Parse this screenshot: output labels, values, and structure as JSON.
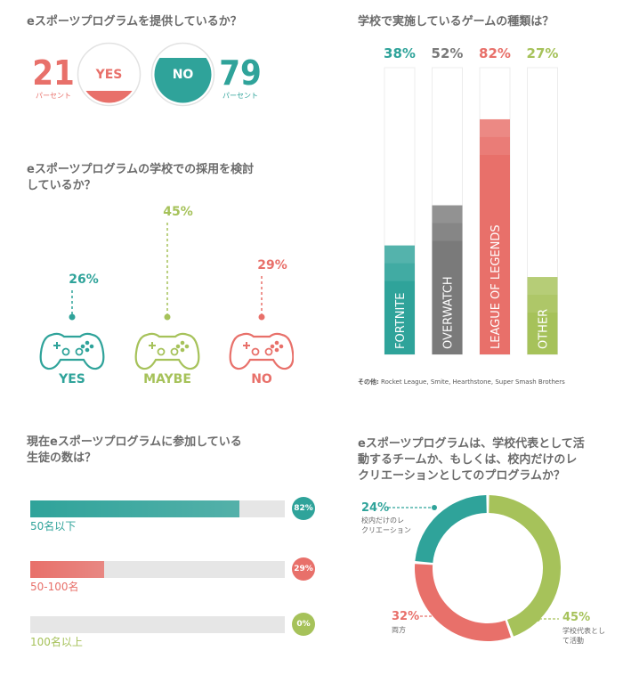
{
  "colors": {
    "teal": "#2fa39a",
    "coral": "#e8706a",
    "olive": "#a6c25a",
    "gray": "#7a7a7a",
    "track": "#e6e6e6"
  },
  "q1": {
    "title": "eスポーツプログラムを提供しているか？",
    "yes_value": "21",
    "yes_unit": "パーセント",
    "yes_label": "YES",
    "no_value": "79",
    "no_unit": "パーセント",
    "no_label": "NO"
  },
  "q2": {
    "title_line1": "eスポーツプログラムの学校での採用を検討",
    "title_line2": "しているか？",
    "items": [
      {
        "pct": "26%",
        "label": "YES"
      },
      {
        "pct": "45%",
        "label": "MAYBE"
      },
      {
        "pct": "29%",
        "label": "NO"
      }
    ]
  },
  "q3": {
    "title": "学校で実施しているゲームの種類は？",
    "note_prefix": "その他:",
    "note_text": "Rocket League, Smite, Hearthstone, Super Smash Brothers"
  },
  "q4": {
    "title_line1": "現在eスポーツプログラムに参加している",
    "title_line2": "生徒の数は？"
  },
  "q5": {
    "title_line1": "eスポーツプログラムは、学校代表として活",
    "title_line2": "動するチームか、もしくは、校内だけのレ",
    "title_line3": "クリエーションとしてのプログラムか？",
    "seg1_pct": "24%",
    "seg1_label_l1": "校内だけのレ",
    "seg1_label_l2": "クリエーション",
    "seg2_pct": "32%",
    "seg2_label": "両方",
    "seg3_pct": "45%",
    "seg3_label_l1": "学校代表とし",
    "seg3_label_l2": "て活動"
  },
  "chart_data": [
    {
      "type": "pie",
      "title": "eスポーツプログラムを提供しているか？",
      "categories": [
        "YES",
        "NO"
      ],
      "values": [
        21,
        79
      ]
    },
    {
      "type": "bar",
      "title": "eスポーツプログラムの学校での採用を検討しているか？",
      "categories": [
        "YES",
        "MAYBE",
        "NO"
      ],
      "values": [
        26,
        45,
        29
      ]
    },
    {
      "type": "bar",
      "title": "学校で実施しているゲームの種類は？",
      "categories": [
        "FORTNITE",
        "OVERWATCH",
        "LEAGUE OF LEGENDS",
        "OTHER"
      ],
      "values": [
        38,
        52,
        82,
        27
      ],
      "labels": [
        "38%",
        "52%",
        "82%",
        "27%"
      ],
      "ylim": [
        0,
        100
      ]
    },
    {
      "type": "bar",
      "title": "現在eスポーツプログラムに参加している生徒の数は？",
      "categories": [
        "50名以下",
        "50-100名",
        "100名以上"
      ],
      "values": [
        82,
        29,
        0
      ],
      "labels": [
        "82%",
        "29%",
        "0%"
      ]
    },
    {
      "type": "pie",
      "title": "eスポーツプログラムは、学校代表として活動するチームか、もしくは、校内だけのレクリエーションとしてのプログラムか？",
      "categories": [
        "校内だけのレクリエーション",
        "両方",
        "学校代表として活動"
      ],
      "values": [
        24,
        32,
        45
      ]
    }
  ]
}
